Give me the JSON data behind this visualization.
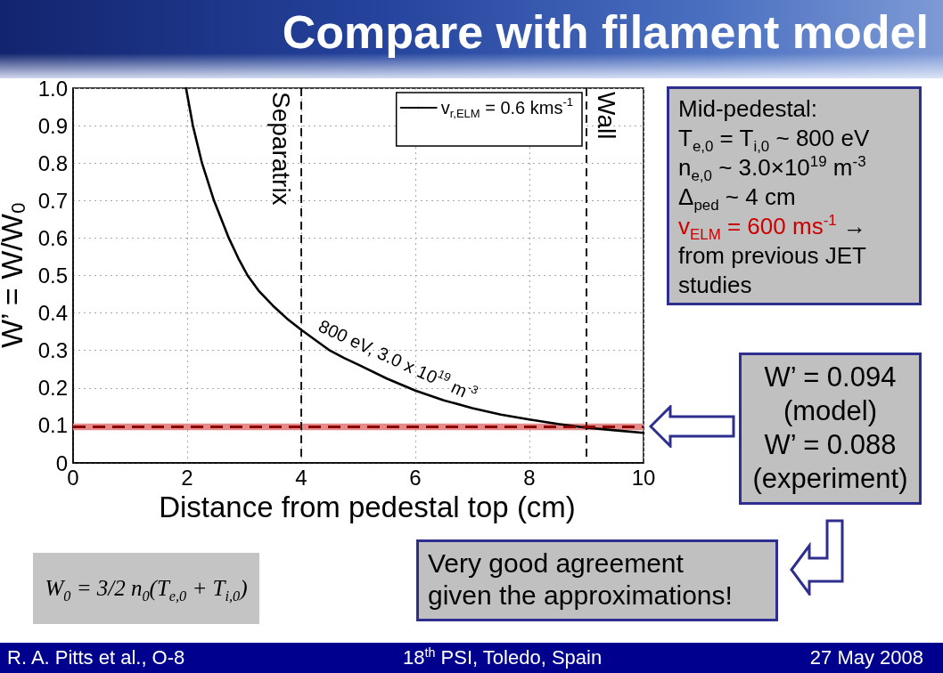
{
  "chart_data": {
    "type": "line",
    "title": "Compare with filament model",
    "xlabel": "Distance from pedestal top (cm)",
    "ylabel": "W’ = W/W$_{0}$",
    "x": [
      1.98,
      2.1,
      2.26,
      2.47,
      2.73,
      2.9,
      3.06,
      3.25,
      3.5,
      3.75,
      4.0,
      4.5,
      4.75,
      5.0,
      5.5,
      6.0,
      6.5,
      7.0,
      7.5,
      8.0,
      8.5,
      9.0,
      9.5,
      10.0
    ],
    "series": [
      {
        "name": "v$_{r,ELM}$ = 0.6 kms$^{-1}$",
        "color": "#000000",
        "values": [
          1.0,
          0.9,
          0.8,
          0.7,
          0.6,
          0.545,
          0.5,
          0.46,
          0.42,
          0.385,
          0.355,
          0.3,
          0.28,
          0.262,
          0.225,
          0.193,
          0.167,
          0.146,
          0.129,
          0.116,
          0.104,
          0.094,
          0.087,
          0.08
        ]
      }
    ],
    "xlim": [
      0,
      10
    ],
    "xticks": [
      0,
      2,
      4,
      6,
      8,
      10
    ],
    "ylim": [
      0,
      1
    ],
    "yticks": [
      0,
      0.1,
      0.2,
      0.3,
      0.4,
      0.5,
      0.6,
      0.7,
      0.8,
      0.9,
      {
        "value": 1,
        "label": "1.0"
      }
    ],
    "grid": true,
    "legend": "top right",
    "ref_lines": [
      {
        "axis": "x",
        "value": 4,
        "label": "Separatrix",
        "color": "#000000",
        "line_style": "dashed"
      },
      {
        "axis": "x",
        "value": 9,
        "label": "Wall",
        "color": "#000000",
        "line_style": "dashed"
      },
      {
        "axis": "y",
        "value": 0.096,
        "color": "#8b0000",
        "line_style": "dashed"
      }
    ],
    "bands": [
      {
        "axis": "y",
        "from": 0.087,
        "to": 0.105,
        "color": "#e58a8a"
      }
    ],
    "annotations": [
      "800 eV, 3.0 x 10$^{19}$ m$^{-3}$",
      "Mid-pedestal:",
      "T$_{e,0}$ = T$_{i,0}$ ~ 800 eV",
      "n$_{e,0}$ ~ 3.0×10$^{19}$ m$^{-3}$",
      "Δ$_{ped}$ ~ 4 cm",
      "v$_{ELM}$ = 600 ms$^{-1}$",
      "→ from previous JET studies",
      "W’ = 0.094 (model)",
      "W’ = 0.088 (experiment)",
      "Very good agreement given the approximations!",
      "W$_{0}$ = 3/2 n$_{0}$(T$_{e,0}$ + T$_{i,0}$)",
      "R. A. Pitts et al., O-8",
      "18$^{th}$ PSI, Toledo, Spain",
      "27 May 2008"
    ]
  }
}
